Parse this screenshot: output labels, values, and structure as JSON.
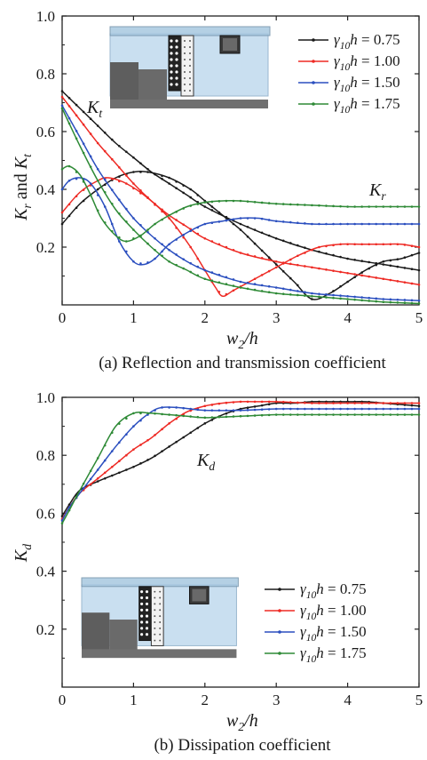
{
  "colors": {
    "g075": "#1a1a1a",
    "g100": "#ee2a24",
    "g150": "#2b4fbf",
    "g175": "#2e8a36",
    "water": "#c9dff0",
    "bed": "#5e5e5e"
  },
  "chart_data": [
    {
      "type": "line",
      "caption": "(a) Reflection and transmission coefficient",
      "xlabel": "w2/h",
      "ylabel": "Kr and Kt",
      "xlim": [
        0,
        5
      ],
      "ylim": [
        0,
        1
      ],
      "xticks": [
        "0",
        "1",
        "2",
        "3",
        "4",
        "5"
      ],
      "yticks": [
        "0.2",
        "0.4",
        "0.6",
        "0.8",
        "1.0"
      ],
      "annotations": [
        "Kt",
        "Kr"
      ],
      "legend_position": "top-right",
      "series": [
        {
          "name": "γ10h = 0.75",
          "color_key": "g075",
          "curve": "Kr",
          "x": [
            0,
            0.25,
            0.5,
            0.75,
            1.0,
            1.2,
            1.5,
            1.8,
            2.0,
            2.25,
            2.5,
            2.75,
            3.0,
            3.25,
            3.5,
            3.75,
            4.0,
            4.25,
            4.5,
            4.75,
            5.0
          ],
          "y": [
            0.28,
            0.35,
            0.4,
            0.44,
            0.46,
            0.46,
            0.44,
            0.4,
            0.36,
            0.31,
            0.26,
            0.2,
            0.14,
            0.08,
            0.02,
            0.04,
            0.08,
            0.12,
            0.15,
            0.16,
            0.18
          ]
        },
        {
          "name": "γ10h = 0.75",
          "color_key": "g075",
          "curve": "Kt",
          "x": [
            0,
            0.25,
            0.5,
            0.75,
            1.0,
            1.25,
            1.5,
            1.75,
            2.0,
            2.5,
            3.0,
            3.5,
            4.0,
            4.5,
            5.0
          ],
          "y": [
            0.74,
            0.68,
            0.62,
            0.56,
            0.51,
            0.46,
            0.42,
            0.38,
            0.34,
            0.28,
            0.23,
            0.19,
            0.16,
            0.14,
            0.12
          ]
        },
        {
          "name": "γ10h = 1.00",
          "color_key": "g100",
          "curve": "Kr",
          "x": [
            0,
            0.25,
            0.5,
            0.65,
            0.9,
            1.2,
            1.5,
            1.8,
            2.0,
            2.15,
            2.25,
            2.4,
            2.7,
            3.0,
            3.3,
            3.6,
            3.9,
            4.2,
            4.5,
            4.75,
            5.0
          ],
          "y": [
            0.32,
            0.39,
            0.43,
            0.44,
            0.42,
            0.37,
            0.3,
            0.2,
            0.12,
            0.06,
            0.03,
            0.05,
            0.09,
            0.13,
            0.17,
            0.2,
            0.21,
            0.21,
            0.21,
            0.21,
            0.2
          ]
        },
        {
          "name": "γ10h = 1.00",
          "color_key": "g100",
          "curve": "Kt",
          "x": [
            0,
            0.25,
            0.5,
            0.75,
            1.0,
            1.25,
            1.5,
            1.75,
            2.0,
            2.5,
            3.0,
            3.5,
            4.0,
            4.5,
            5.0
          ],
          "y": [
            0.72,
            0.64,
            0.56,
            0.49,
            0.42,
            0.36,
            0.31,
            0.27,
            0.23,
            0.18,
            0.15,
            0.13,
            0.11,
            0.09,
            0.07
          ]
        },
        {
          "name": "γ10h = 1.50",
          "color_key": "g150",
          "curve": "Kr",
          "x": [
            0,
            0.1,
            0.25,
            0.4,
            0.6,
            0.8,
            1.0,
            1.15,
            1.3,
            1.5,
            1.75,
            2.0,
            2.25,
            2.5,
            2.75,
            3.0,
            3.5,
            4.0,
            4.5,
            5.0
          ],
          "y": [
            0.4,
            0.43,
            0.44,
            0.42,
            0.34,
            0.22,
            0.15,
            0.14,
            0.16,
            0.21,
            0.25,
            0.28,
            0.29,
            0.3,
            0.3,
            0.29,
            0.28,
            0.28,
            0.28,
            0.28
          ]
        },
        {
          "name": "γ10h = 1.50",
          "color_key": "g150",
          "curve": "Kt",
          "x": [
            0,
            0.25,
            0.5,
            0.75,
            1.0,
            1.25,
            1.5,
            1.75,
            2.0,
            2.5,
            3.0,
            3.5,
            4.0,
            4.5,
            5.0
          ],
          "y": [
            0.69,
            0.58,
            0.47,
            0.38,
            0.3,
            0.24,
            0.19,
            0.15,
            0.12,
            0.08,
            0.06,
            0.04,
            0.03,
            0.02,
            0.015
          ]
        },
        {
          "name": "γ10h = 1.75",
          "color_key": "g175",
          "curve": "Kr",
          "x": [
            0,
            0.1,
            0.25,
            0.4,
            0.55,
            0.75,
            0.9,
            1.1,
            1.3,
            1.5,
            1.75,
            2.0,
            2.25,
            2.5,
            3.0,
            3.5,
            4.0,
            4.5,
            5.0
          ],
          "y": [
            0.47,
            0.48,
            0.45,
            0.38,
            0.3,
            0.24,
            0.22,
            0.24,
            0.28,
            0.31,
            0.34,
            0.355,
            0.36,
            0.36,
            0.35,
            0.345,
            0.34,
            0.34,
            0.34
          ]
        },
        {
          "name": "γ10h = 1.75",
          "color_key": "g175",
          "curve": "Kt",
          "x": [
            0,
            0.25,
            0.5,
            0.75,
            1.0,
            1.25,
            1.5,
            1.75,
            2.0,
            2.5,
            3.0,
            3.5,
            4.0,
            4.5,
            5.0
          ],
          "y": [
            0.68,
            0.55,
            0.43,
            0.33,
            0.26,
            0.2,
            0.15,
            0.12,
            0.09,
            0.06,
            0.04,
            0.03,
            0.02,
            0.01,
            0.005
          ]
        }
      ]
    },
    {
      "type": "line",
      "caption": "(b) Dissipation coefficient",
      "xlabel": "w2/h",
      "ylabel": "Kd",
      "xlim": [
        0,
        5
      ],
      "ylim": [
        0,
        1
      ],
      "xticks": [
        "0",
        "1",
        "2",
        "3",
        "4",
        "5"
      ],
      "yticks": [
        "0.2",
        "0.4",
        "0.6",
        "0.8",
        "1.0"
      ],
      "annotations": [
        "Kd"
      ],
      "legend_position": "bottom-right",
      "series": [
        {
          "name": "γ10h = 0.75",
          "color_key": "g075",
          "x": [
            0,
            0.1,
            0.25,
            0.5,
            0.75,
            1.0,
            1.25,
            1.5,
            1.75,
            2.0,
            2.25,
            2.5,
            2.75,
            3.0,
            3.25,
            3.5,
            3.75,
            4.0,
            4.25,
            4.5,
            4.75,
            5.0
          ],
          "y": [
            0.59,
            0.63,
            0.68,
            0.71,
            0.735,
            0.76,
            0.79,
            0.83,
            0.87,
            0.91,
            0.94,
            0.96,
            0.97,
            0.98,
            0.98,
            0.985,
            0.985,
            0.985,
            0.985,
            0.98,
            0.975,
            0.97
          ]
        },
        {
          "name": "γ10h = 1.00",
          "color_key": "g100",
          "x": [
            0,
            0.1,
            0.25,
            0.5,
            0.75,
            1.0,
            1.25,
            1.5,
            1.75,
            2.0,
            2.25,
            2.5,
            2.75,
            3.0,
            3.5,
            4.0,
            4.5,
            5.0
          ],
          "y": [
            0.58,
            0.62,
            0.67,
            0.72,
            0.77,
            0.82,
            0.86,
            0.91,
            0.95,
            0.97,
            0.98,
            0.985,
            0.985,
            0.985,
            0.98,
            0.98,
            0.98,
            0.98
          ]
        },
        {
          "name": "γ10h = 1.50",
          "color_key": "g150",
          "x": [
            0,
            0.1,
            0.25,
            0.5,
            0.75,
            1.0,
            1.25,
            1.4,
            1.6,
            1.8,
            2.0,
            2.5,
            3.0,
            3.5,
            4.0,
            4.5,
            5.0
          ],
          "y": [
            0.575,
            0.62,
            0.67,
            0.75,
            0.83,
            0.9,
            0.95,
            0.965,
            0.965,
            0.96,
            0.955,
            0.955,
            0.96,
            0.96,
            0.96,
            0.96,
            0.96
          ]
        },
        {
          "name": "γ10h = 1.75",
          "color_key": "g175",
          "x": [
            0,
            0.1,
            0.25,
            0.5,
            0.75,
            1.0,
            1.25,
            1.5,
            1.75,
            2.0,
            2.5,
            3.0,
            3.5,
            4.0,
            4.5,
            5.0
          ],
          "y": [
            0.565,
            0.61,
            0.68,
            0.79,
            0.9,
            0.945,
            0.945,
            0.94,
            0.935,
            0.93,
            0.935,
            0.94,
            0.94,
            0.94,
            0.94,
            0.94
          ]
        }
      ]
    }
  ]
}
